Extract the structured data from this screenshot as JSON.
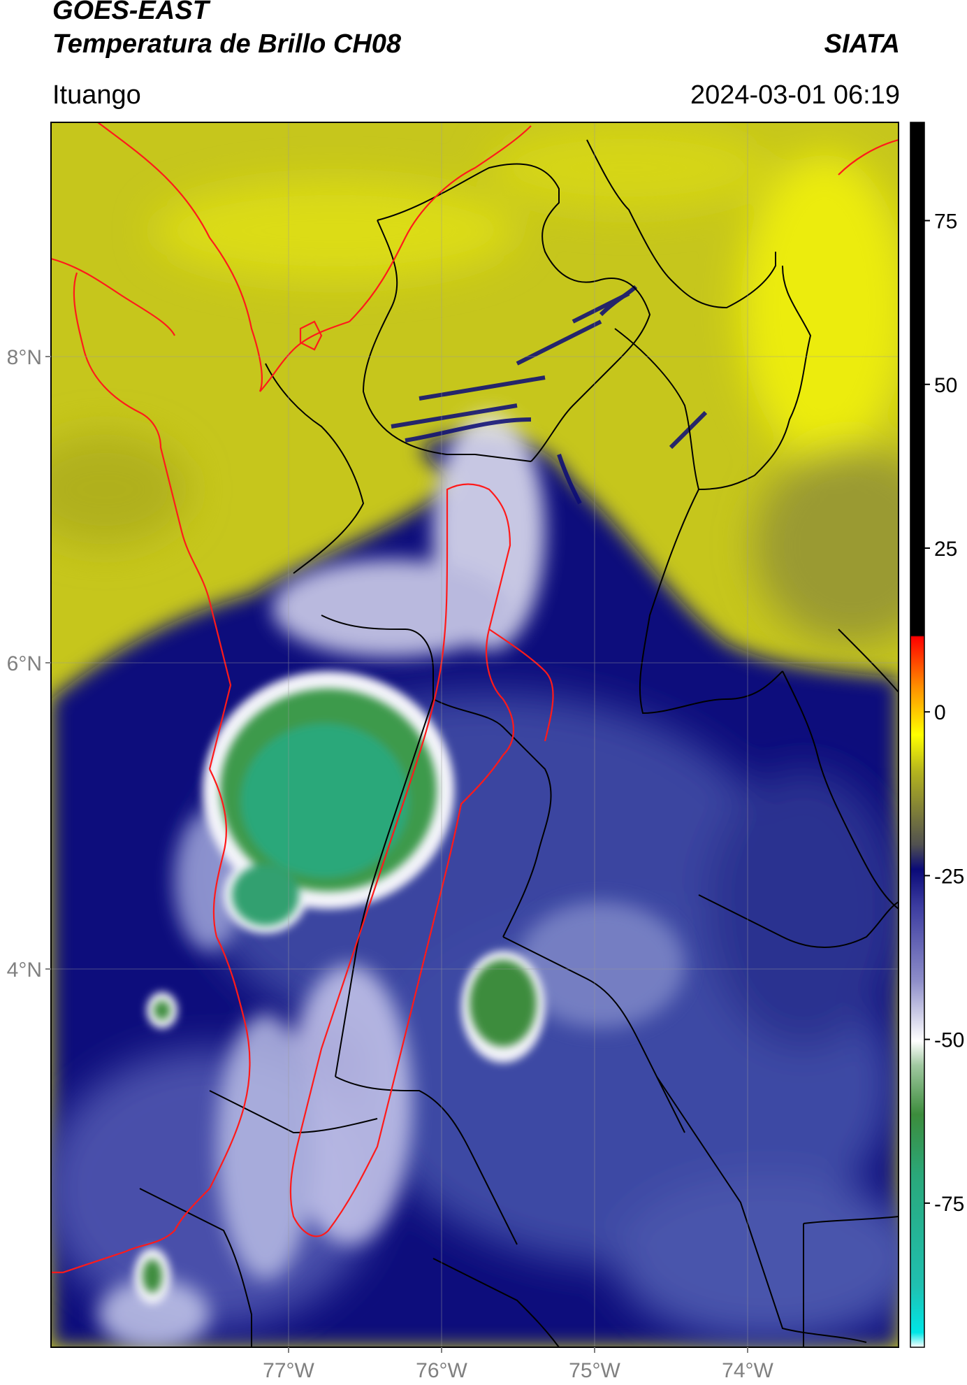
{
  "header": {
    "satellite": "GOES-EAST",
    "product": "Temperatura de Brillo CH08",
    "brand": "SIATA",
    "location": "Ituango",
    "datetime": "2024-03-01 06:19"
  },
  "map": {
    "lat_ticks": [
      "8°N",
      "6°N",
      "4°N"
    ],
    "lon_ticks": [
      "77°W",
      "76°W",
      "75°W",
      "74°W"
    ],
    "colorbar": {
      "ticks": [
        "75",
        "50",
        "25",
        "0",
        "-25",
        "-50",
        "-75"
      ],
      "range_min": -97,
      "range_max": 90
    },
    "colors": {
      "warm_yellow": "#c8c81e",
      "bright_yellow": "#e6e614",
      "deep_blue": "#0a0a78",
      "mid_blue": "#3c46a0",
      "white": "#f0f0f8",
      "green": "#3c8c3c",
      "teal": "#2aa87a",
      "border_red": "#ff1a1a",
      "border_black": "#000000"
    }
  }
}
